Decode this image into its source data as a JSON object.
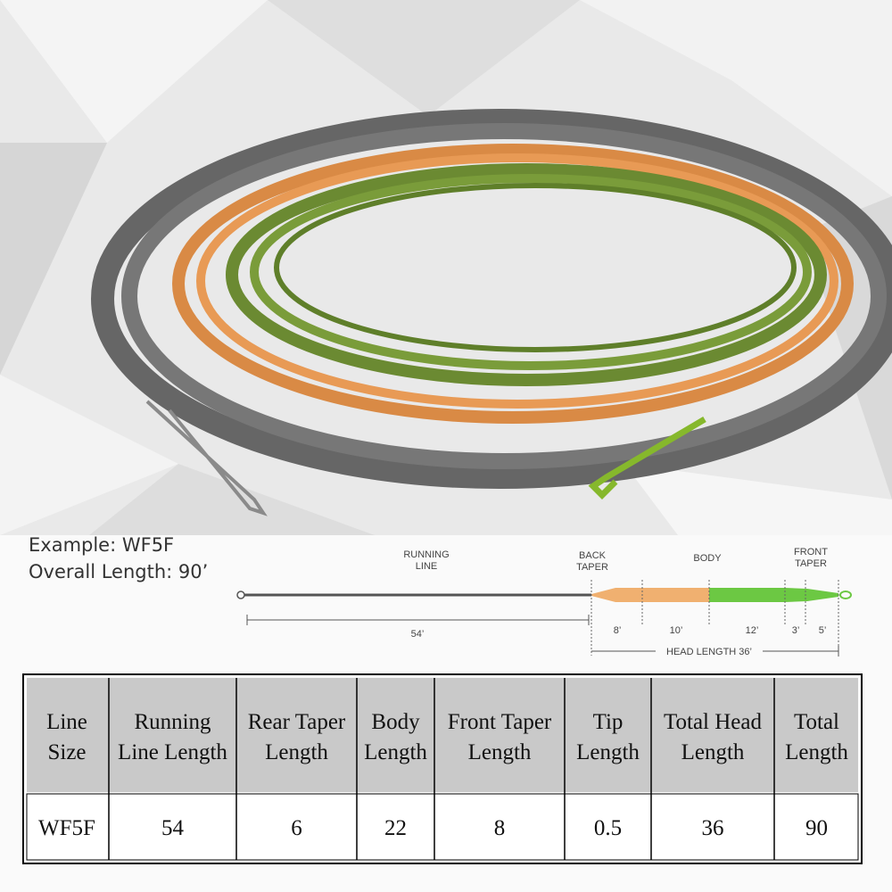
{
  "example": {
    "line1": "Example: WF5F",
    "line2": "Overall Length: 90’"
  },
  "diagram": {
    "sections": [
      {
        "lines": [
          "RUNNING",
          "LINE"
        ]
      },
      {
        "lines": [
          "BACK",
          "TAPER"
        ]
      },
      {
        "lines": [
          "BODY"
        ]
      },
      {
        "lines": [
          "FRONT",
          "TAPER"
        ]
      }
    ],
    "lengths": [
      "54’",
      "8’",
      "10’",
      "12’",
      "3’",
      "5’"
    ],
    "head_length": "HEAD LENGTH 36’"
  },
  "table": {
    "header": [
      [
        "Line",
        "Size"
      ],
      [
        "Running",
        "Line Length"
      ],
      [
        "Rear Taper",
        "Length"
      ],
      [
        "Body",
        "Length"
      ],
      [
        "Front Taper",
        "Length"
      ],
      [
        "Tip",
        "Length"
      ],
      [
        "Total Head",
        "Length"
      ],
      [
        "Total",
        "Length"
      ]
    ],
    "rows": [
      [
        "WF5F",
        54,
        6,
        22,
        8,
        0.5,
        36,
        90
      ]
    ]
  }
}
